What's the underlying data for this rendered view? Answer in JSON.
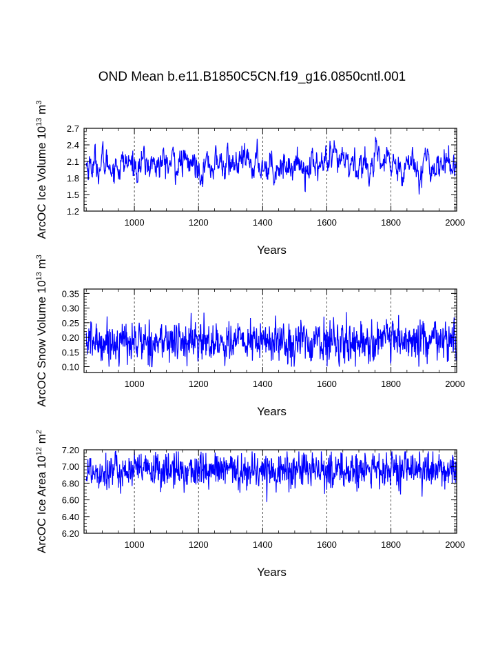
{
  "title": "OND Mean b.e11.B1850C5CN.f19_g16.0850cntl.001",
  "chart_data": [
    {
      "type": "line",
      "panel": "ice_volume",
      "ylabel_text": "ArcOC Ice Volume 10",
      "ylabel_exp": "13",
      "ylabel_unit": "m",
      "ylabel_unit_exp": "3",
      "xlabel": "Years",
      "xlim": [
        843,
        2005
      ],
      "ylim": [
        1.2,
        2.7
      ],
      "yticks": [
        1.2,
        1.5,
        1.8,
        2.1,
        2.4,
        2.7
      ],
      "ytick_labels": [
        "1.2",
        "1.5",
        "1.8",
        "2.1",
        "2.4",
        "2.7"
      ],
      "xticks": [
        1000,
        1200,
        1400,
        1600,
        1800,
        2000
      ],
      "xtick_labels": [
        "1000",
        "1200",
        "1400",
        "1600",
        "1800",
        "2000"
      ],
      "x_start": 850,
      "x_end": 2005,
      "series_mean": 2.05,
      "series_std": 0.16,
      "series_smoothing": 0.72,
      "series_min": 1.35,
      "series_max": 2.7,
      "series_color": "#0000ff",
      "grid": "dashed vertical at major x ticks",
      "series": [
        {
          "name": "ArcOC Ice Volume",
          "x_range": [
            850,
            2005
          ]
        }
      ]
    },
    {
      "type": "line",
      "panel": "snow_volume",
      "ylabel_text": "ArcOC Snow Volume 10",
      "ylabel_exp": "13",
      "ylabel_unit": "m",
      "ylabel_unit_exp": "3",
      "xlabel": "Years",
      "xlim": [
        843,
        2005
      ],
      "ylim": [
        0.08,
        0.365
      ],
      "yticks": [
        0.1,
        0.15,
        0.2,
        0.25,
        0.3,
        0.35
      ],
      "ytick_labels": [
        "0.10",
        "0.15",
        "0.20",
        "0.25",
        "0.30",
        "0.35"
      ],
      "xticks": [
        1000,
        1200,
        1400,
        1600,
        1800,
        2000
      ],
      "xtick_labels": [
        "1000",
        "1200",
        "1400",
        "1600",
        "1800",
        "2000"
      ],
      "x_start": 850,
      "x_end": 2005,
      "series_mean": 0.185,
      "series_std": 0.035,
      "series_smoothing": 0.35,
      "series_min": 0.1,
      "series_max": 0.325,
      "series_color": "#0000ff",
      "grid": "dashed vertical at major x ticks",
      "series": [
        {
          "name": "ArcOC Snow Volume",
          "x_range": [
            850,
            2005
          ]
        }
      ]
    },
    {
      "type": "line",
      "panel": "ice_area",
      "ylabel_text": "ArcOC Ice Area 10",
      "ylabel_exp": "12",
      "ylabel_unit": "m",
      "ylabel_unit_exp": "2",
      "xlabel": "Years",
      "xlim": [
        843,
        2005
      ],
      "ylim": [
        6.2,
        7.2
      ],
      "yticks": [
        6.2,
        6.4,
        6.6,
        6.8,
        7.0,
        7.2
      ],
      "ytick_labels": [
        "6.20",
        "6.40",
        "6.60",
        "6.80",
        "7.00",
        "7.20"
      ],
      "xticks": [
        1000,
        1200,
        1400,
        1600,
        1800,
        2000
      ],
      "xtick_labels": [
        "1000",
        "1200",
        "1400",
        "1600",
        "1800",
        "2000"
      ],
      "x_start": 850,
      "x_end": 2005,
      "series_mean": 6.95,
      "series_std": 0.11,
      "series_smoothing": 0.25,
      "series_min": 6.3,
      "series_max": 7.18,
      "series_color": "#0000ff",
      "grid": "dashed vertical at major x ticks",
      "series": [
        {
          "name": "ArcOC Ice Area",
          "x_range": [
            850,
            2005
          ]
        }
      ]
    }
  ]
}
